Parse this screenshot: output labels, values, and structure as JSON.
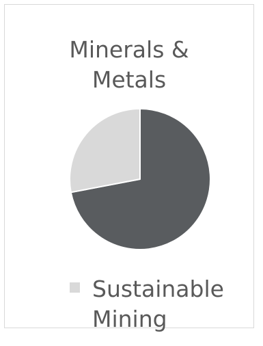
{
  "chart_data": {
    "type": "pie",
    "title_lines": [
      "Minerals &",
      "Metals"
    ],
    "slices": [
      {
        "label": "",
        "value": 72,
        "color": "#595c5f"
      },
      {
        "label": "Sustainable Mining",
        "value": 28,
        "color": "#d9d9d9"
      }
    ],
    "legend": {
      "entries": [
        {
          "label": "Sustainable Mining",
          "color": "#d9d9d9"
        }
      ],
      "placement": "bottom"
    }
  },
  "legend_label_lines": [
    "Sustainable",
    "Mining"
  ],
  "colors": {
    "text": "#595959",
    "border": "#d9d9d9"
  }
}
